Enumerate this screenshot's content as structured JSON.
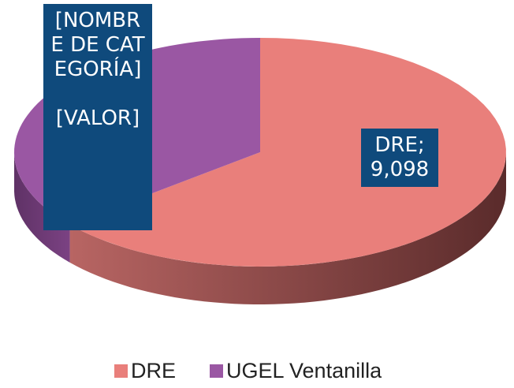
{
  "chart_data": {
    "type": "pie3d",
    "categories": [
      "DRE",
      "UGEL Ventanilla"
    ],
    "values": [
      9098,
      5100
    ],
    "value_labels": [
      "DRE; 9,098",
      "[NOMBRE DE CATEGORÍA]\n\n[VALOR]"
    ],
    "colors": [
      "#e97f7b",
      "#9a57a3"
    ],
    "legend": "bottom"
  }
}
